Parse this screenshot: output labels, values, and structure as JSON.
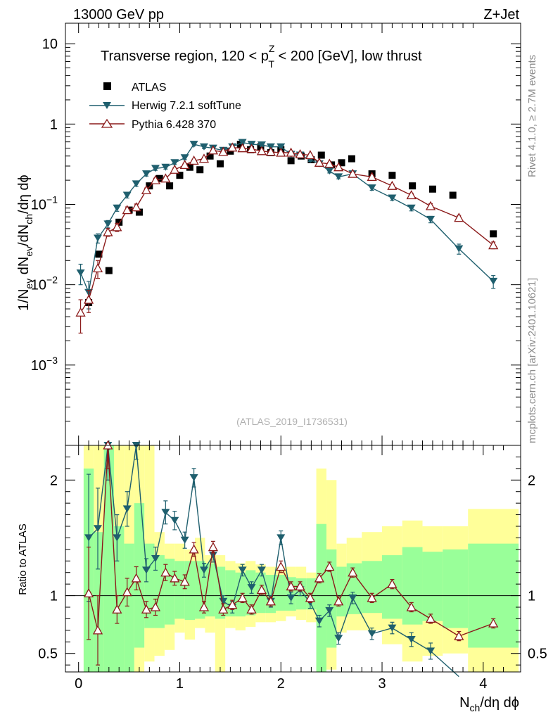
{
  "header": {
    "energy_label": "13000 GeV pp",
    "process_label": "Z+Jet"
  },
  "side_labels": {
    "rivet": "Rivet 4.1.0, ≥ 2.7M events",
    "source": "mcplots.cern.ch [arXiv:2401.10621]"
  },
  "colors": {
    "atlas": "#000000",
    "herwig": "#1f5f6e",
    "pythia": "#8b1a1a",
    "band_yellow": "#ffff99",
    "band_green": "#99ff99"
  },
  "chart_data": [
    {
      "type": "scatter",
      "panel": "main",
      "title_parts": {
        "prefix": "Transverse region, 120 < p",
        "sup": "Z",
        "sub": "T",
        "suffix": " < 200 [GeV], low thrust"
      },
      "watermark": "(ATLAS_2019_I1736531)",
      "yscale": "log",
      "xlim": [
        -0.13,
        4.37
      ],
      "ylim": [
        0.0001,
        18
      ],
      "ylabel_parts": [
        "1/N",
        "ev",
        " dN",
        "ev",
        "/dN",
        "ch",
        "/dη dϕ"
      ],
      "y_ticks": [
        {
          "value": 10,
          "label": "10"
        },
        {
          "value": 1,
          "label": "1"
        },
        {
          "value": 0.1,
          "base": "10",
          "exp": "−1"
        },
        {
          "value": 0.01,
          "base": "10",
          "exp": "−2"
        },
        {
          "value": 0.001,
          "base": "10",
          "exp": "−3"
        }
      ],
      "legend_position": "top-left",
      "series": [
        {
          "name": "ATLAS",
          "marker": "square",
          "x": [
            0.1,
            0.2,
            0.3,
            0.4,
            0.5,
            0.6,
            0.7,
            0.8,
            0.9,
            1.0,
            1.1,
            1.2,
            1.3,
            1.4,
            1.5,
            1.6,
            1.7,
            1.8,
            1.9,
            2.0,
            2.1,
            2.2,
            2.3,
            2.4,
            2.5,
            2.6,
            2.7,
            2.9,
            3.1,
            3.3,
            3.5,
            3.7,
            4.1
          ],
          "y": [
            0.006,
            0.024,
            0.015,
            0.06,
            0.085,
            0.08,
            0.17,
            0.21,
            0.17,
            0.23,
            0.29,
            0.27,
            0.4,
            0.32,
            0.46,
            0.56,
            0.48,
            0.52,
            0.44,
            0.48,
            0.35,
            0.4,
            0.36,
            0.41,
            0.31,
            0.33,
            0.37,
            0.24,
            0.23,
            0.17,
            0.155,
            0.13,
            0.043
          ]
        },
        {
          "name": "Herwig 7.2.1 softTune",
          "marker": "triangle-down",
          "x": [
            0.02,
            0.1,
            0.19,
            0.29,
            0.38,
            0.48,
            0.57,
            0.67,
            0.76,
            0.86,
            0.95,
            1.05,
            1.14,
            1.24,
            1.33,
            1.43,
            1.52,
            1.62,
            1.71,
            1.81,
            1.9,
            2.0,
            2.1,
            2.19,
            2.29,
            2.38,
            2.48,
            2.57,
            2.71,
            2.9,
            3.1,
            3.29,
            3.48,
            3.76,
            4.1
          ],
          "y": [
            0.014,
            0.008,
            0.038,
            0.057,
            0.09,
            0.13,
            0.18,
            0.24,
            0.28,
            0.29,
            0.33,
            0.38,
            0.56,
            0.52,
            0.5,
            0.47,
            0.52,
            0.59,
            0.56,
            0.55,
            0.52,
            0.52,
            0.42,
            0.41,
            0.36,
            0.32,
            0.26,
            0.22,
            0.24,
            0.16,
            0.12,
            0.09,
            0.065,
            0.028,
            0.011
          ],
          "err": [
            0.004,
            0.003,
            0.005,
            0.006,
            0.008,
            0.01,
            0.012,
            0.015,
            0.015,
            0.015,
            0.017,
            0.02,
            0.025,
            0.025,
            0.024,
            0.022,
            0.023,
            0.025,
            0.024,
            0.024,
            0.022,
            0.022,
            0.02,
            0.02,
            0.018,
            0.016,
            0.014,
            0.012,
            0.013,
            0.01,
            0.008,
            0.007,
            0.006,
            0.004,
            0.002
          ]
        },
        {
          "name": "Pythia 6.428 370",
          "marker": "triangle-up-open",
          "x": [
            0.02,
            0.1,
            0.19,
            0.29,
            0.38,
            0.48,
            0.57,
            0.67,
            0.76,
            0.86,
            0.95,
            1.05,
            1.14,
            1.24,
            1.33,
            1.43,
            1.52,
            1.62,
            1.71,
            1.81,
            1.9,
            2.0,
            2.1,
            2.19,
            2.29,
            2.38,
            2.48,
            2.57,
            2.71,
            2.9,
            3.1,
            3.29,
            3.48,
            3.76,
            4.1
          ],
          "y": [
            0.0045,
            0.0065,
            0.016,
            0.045,
            0.052,
            0.085,
            0.092,
            0.15,
            0.2,
            0.21,
            0.27,
            0.31,
            0.35,
            0.37,
            0.47,
            0.45,
            0.51,
            0.5,
            0.49,
            0.46,
            0.45,
            0.44,
            0.44,
            0.42,
            0.41,
            0.33,
            0.32,
            0.29,
            0.24,
            0.22,
            0.17,
            0.13,
            0.095,
            0.068,
            0.031
          ],
          "err": [
            0.002,
            0.002,
            0.004,
            0.005,
            0.006,
            0.008,
            0.009,
            0.01,
            0.012,
            0.012,
            0.014,
            0.015,
            0.016,
            0.016,
            0.02,
            0.02,
            0.021,
            0.021,
            0.02,
            0.019,
            0.019,
            0.018,
            0.018,
            0.017,
            0.017,
            0.015,
            0.014,
            0.013,
            0.012,
            0.011,
            0.009,
            0.008,
            0.007,
            0.005,
            0.003
          ]
        }
      ]
    },
    {
      "type": "line",
      "panel": "ratio",
      "ylabel": "Ratio to ATLAS",
      "xlabel_parts": [
        "N",
        "ch",
        "/dη dϕ"
      ],
      "yscale": "linear",
      "xlim": [
        -0.13,
        4.37
      ],
      "ylim": [
        0.34,
        2.3
      ],
      "reference_line": 1,
      "x_ticks": [
        0,
        1,
        2,
        3,
        4
      ],
      "y_ticks": [
        0.5,
        1,
        2
      ],
      "bands": {
        "edges": [
          0.05,
          0.15,
          0.25,
          0.35,
          0.45,
          0.55,
          0.65,
          0.75,
          0.85,
          0.95,
          1.05,
          1.15,
          1.25,
          1.35,
          1.45,
          1.55,
          1.65,
          1.75,
          1.85,
          1.95,
          2.05,
          2.15,
          2.25,
          2.35,
          2.45,
          2.55,
          2.65,
          2.8,
          3.0,
          3.2,
          3.4,
          3.6,
          3.85,
          4.35
        ],
        "yellow_lo": [
          0.34,
          0.34,
          0.34,
          0.34,
          0.34,
          0.34,
          0.43,
          0.48,
          0.53,
          0.68,
          0.62,
          0.72,
          0.68,
          0.34,
          0.72,
          0.7,
          0.73,
          0.77,
          0.77,
          0.78,
          0.82,
          0.79,
          0.77,
          0.34,
          0.36,
          0.68,
          0.7,
          0.7,
          0.58,
          0.43,
          0.48,
          0.5,
          0.34
        ],
        "yellow_hi": [
          2.3,
          2.3,
          2.3,
          2.3,
          2.3,
          2.3,
          2.3,
          1.55,
          1.45,
          1.45,
          1.4,
          1.5,
          1.35,
          1.35,
          1.3,
          1.28,
          1.3,
          1.27,
          1.25,
          1.25,
          1.25,
          1.25,
          1.2,
          2.1,
          2.0,
          1.45,
          1.5,
          1.55,
          1.6,
          1.65,
          1.6,
          1.6,
          1.75
        ],
        "green_lo": [
          0.34,
          0.34,
          0.34,
          0.34,
          0.34,
          0.55,
          0.72,
          0.72,
          0.75,
          0.8,
          0.79,
          0.8,
          0.82,
          0.8,
          0.82,
          0.82,
          0.83,
          0.85,
          0.85,
          0.87,
          0.87,
          0.88,
          0.88,
          0.34,
          0.55,
          0.82,
          0.84,
          0.85,
          0.8,
          0.75,
          0.78,
          0.72,
          0.55
        ],
        "green_hi": [
          2.1,
          1.55,
          2.3,
          1.6,
          1.45,
          1.8,
          1.45,
          1.35,
          1.32,
          1.3,
          1.3,
          1.3,
          1.28,
          1.25,
          1.22,
          1.2,
          1.22,
          1.2,
          1.18,
          1.18,
          1.16,
          1.15,
          1.15,
          1.62,
          1.4,
          1.25,
          1.28,
          1.3,
          1.35,
          1.42,
          1.38,
          1.4,
          1.45
        ]
      },
      "series": [
        {
          "name": "Herwig 7.2.1 softTune",
          "x": [
            0.1,
            0.19,
            0.29,
            0.38,
            0.48,
            0.57,
            0.67,
            0.76,
            0.86,
            0.95,
            1.05,
            1.14,
            1.24,
            1.33,
            1.43,
            1.52,
            1.62,
            1.71,
            1.81,
            1.9,
            2.0,
            2.1,
            2.19,
            2.29,
            2.38,
            2.48,
            2.57,
            2.71,
            2.9,
            3.1,
            3.29,
            3.48,
            3.76
          ],
          "y": [
            1.5,
            1.58,
            2.3,
            1.5,
            1.75,
            2.3,
            1.22,
            1.32,
            1.72,
            1.65,
            1.48,
            2.02,
            1.22,
            1.35,
            0.95,
            0.9,
            1.22,
            1.07,
            1.22,
            0.95,
            1.5,
            0.98,
            1.05,
            0.94,
            0.78,
            0.87,
            0.63,
            0.98,
            0.67,
            0.72,
            0.62,
            0.52,
            0.3
          ],
          "err": [
            0.55,
            0.35,
            0.3,
            0.2,
            0.15,
            0.12,
            0.1,
            0.1,
            0.1,
            0.08,
            0.07,
            0.08,
            0.06,
            0.06,
            0.05,
            0.05,
            0.05,
            0.05,
            0.05,
            0.05,
            0.06,
            0.05,
            0.05,
            0.05,
            0.05,
            0.05,
            0.05,
            0.05,
            0.05,
            0.05,
            0.06,
            0.07,
            0.08
          ]
        },
        {
          "name": "Pythia 6.428 370",
          "x": [
            0.1,
            0.19,
            0.29,
            0.38,
            0.48,
            0.57,
            0.67,
            0.76,
            0.86,
            0.95,
            1.05,
            1.14,
            1.24,
            1.33,
            1.43,
            1.52,
            1.62,
            1.71,
            1.81,
            1.9,
            2.0,
            2.1,
            2.19,
            2.29,
            2.38,
            2.48,
            2.57,
            2.71,
            2.9,
            3.1,
            3.29,
            3.48,
            3.76,
            4.1
          ],
          "y": [
            1.02,
            0.7,
            2.3,
            0.88,
            1.03,
            1.15,
            0.88,
            0.9,
            1.2,
            1.15,
            1.12,
            1.4,
            0.9,
            1.42,
            0.88,
            0.92,
            0.98,
            0.88,
            1.05,
            0.95,
            1.25,
            1.08,
            1.08,
            0.98,
            1.15,
            1.25,
            0.95,
            1.2,
            0.98,
            1.1,
            0.9,
            0.8,
            0.65,
            0.76
          ],
          "err": [
            0.4,
            0.3,
            0.2,
            0.12,
            0.12,
            0.1,
            0.07,
            0.07,
            0.07,
            0.06,
            0.06,
            0.06,
            0.05,
            0.05,
            0.05,
            0.04,
            0.04,
            0.04,
            0.04,
            0.04,
            0.05,
            0.04,
            0.04,
            0.04,
            0.04,
            0.04,
            0.04,
            0.04,
            0.04,
            0.04,
            0.04,
            0.04,
            0.04,
            0.04
          ]
        }
      ]
    }
  ]
}
